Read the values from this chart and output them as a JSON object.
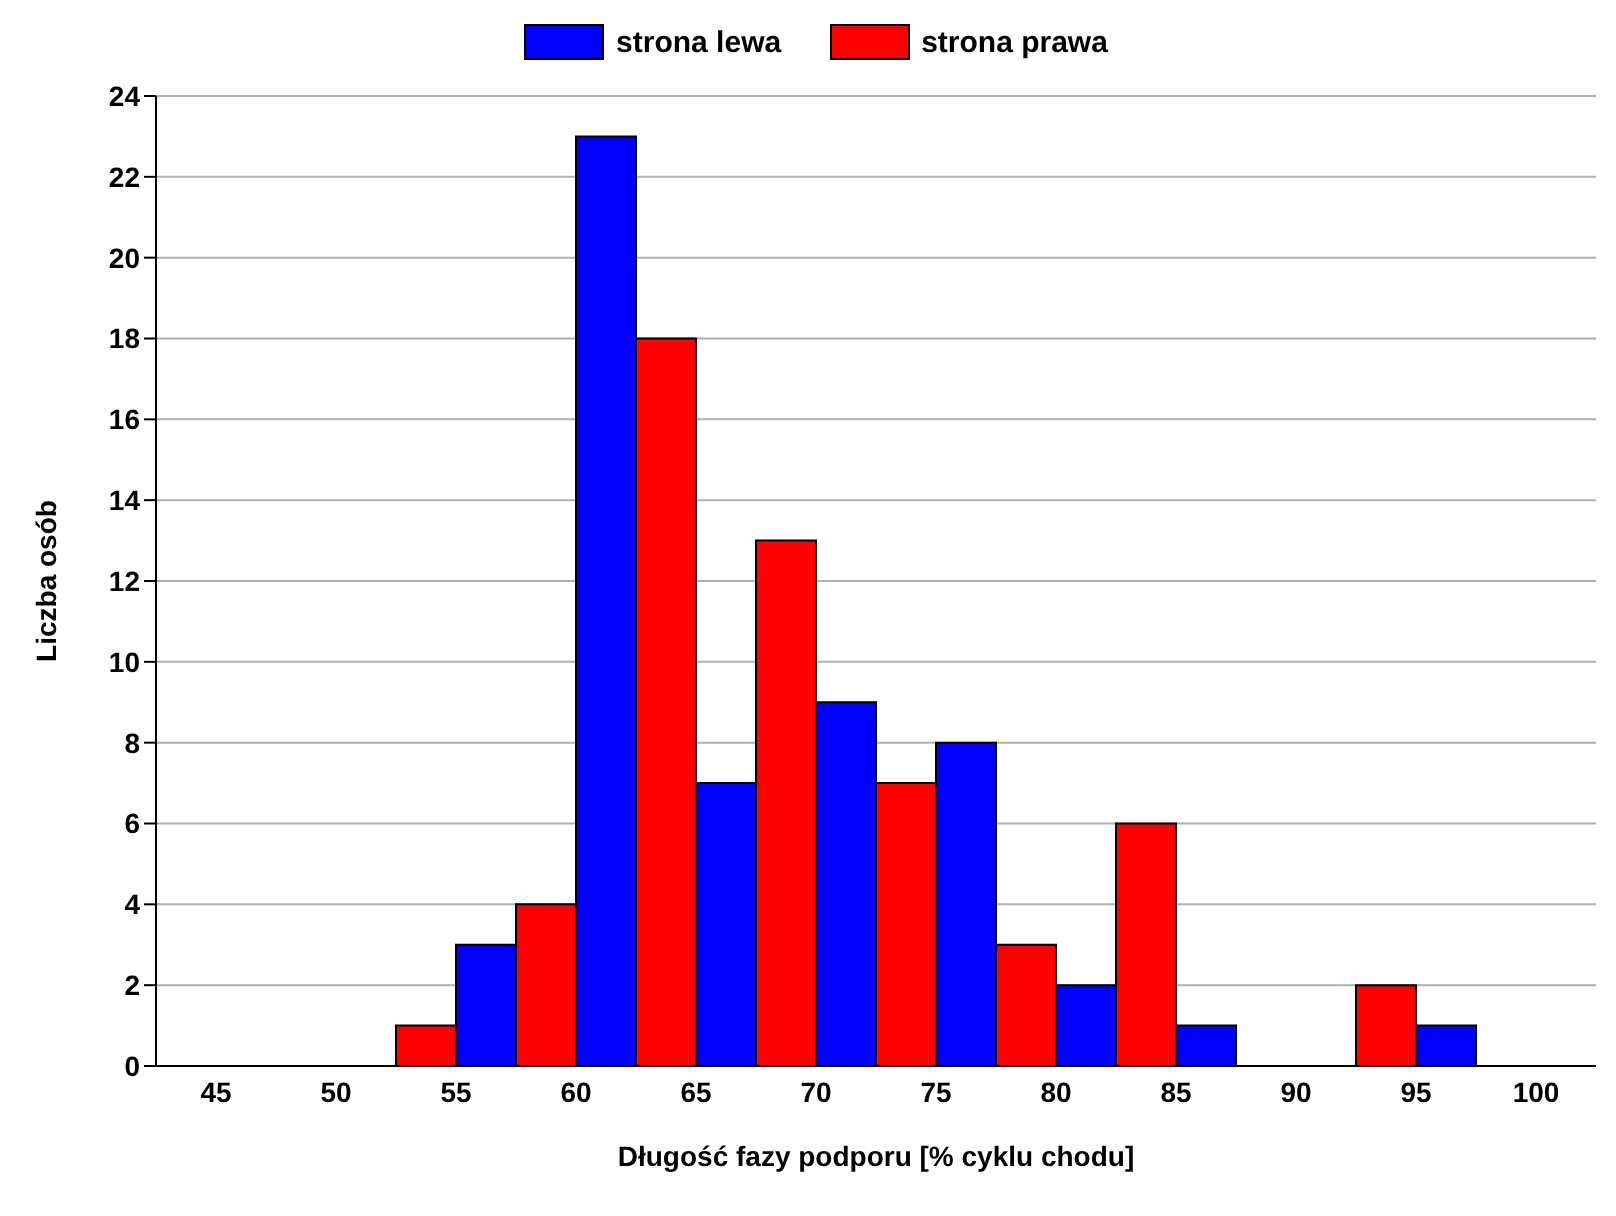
{
  "chart_data": {
    "type": "bar",
    "xlabel": "Długość fazy podporu [% cyklu chodu]",
    "ylabel": "Liczba osób",
    "categories": [
      "45",
      "50",
      "55",
      "60",
      "65",
      "70",
      "75",
      "80",
      "85",
      "90",
      "95",
      "100"
    ],
    "series": [
      {
        "name": "strona lewa",
        "color": "#0000ff",
        "values": [
          0,
          0,
          3,
          23,
          7,
          9,
          8,
          2,
          1,
          0,
          1,
          0
        ]
      },
      {
        "name": "strona prawa",
        "color": "#ff0000",
        "values": [
          0,
          0,
          1,
          4,
          18,
          13,
          7,
          3,
          6,
          0,
          2,
          0
        ]
      }
    ],
    "ylim": [
      0,
      24
    ],
    "yticks": [
      0,
      2,
      4,
      6,
      8,
      10,
      12,
      14,
      16,
      18,
      20,
      22,
      24
    ],
    "grid": "y",
    "legend": "top"
  }
}
